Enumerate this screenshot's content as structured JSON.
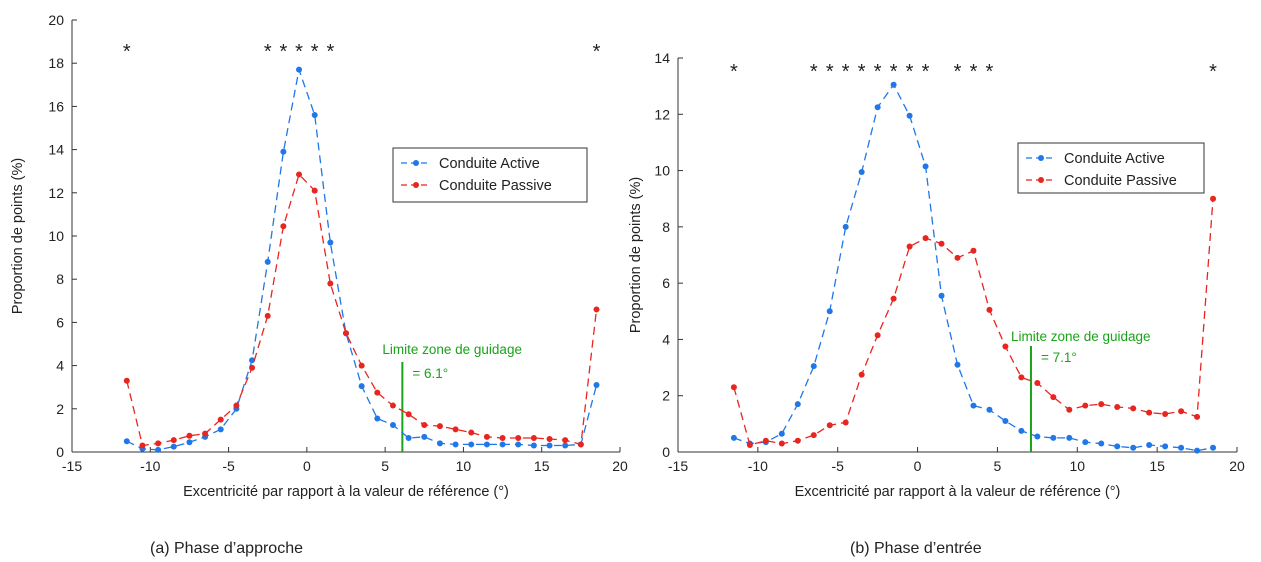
{
  "chart_data": [
    {
      "type": "line",
      "caption": "(a)  Phase d’approche",
      "xlabel": "Excentricité par rapport à la valeur de référence (°)",
      "ylabel": "Proportion de points (%)",
      "xlim": [
        -15,
        20
      ],
      "ylim": [
        0,
        20
      ],
      "xticks": [
        -15,
        -10,
        -5,
        0,
        5,
        10,
        15,
        20
      ],
      "yticks": [
        0,
        2,
        4,
        6,
        8,
        10,
        12,
        14,
        16,
        18,
        20
      ],
      "grid": false,
      "legend": "right",
      "x": [
        -11.5,
        -10.5,
        -9.5,
        -8.5,
        -7.5,
        -6.5,
        -5.5,
        -4.5,
        -3.5,
        -2.5,
        -1.5,
        -0.5,
        0.5,
        1.5,
        2.5,
        3.5,
        4.5,
        5.5,
        6.5,
        7.5,
        8.5,
        9.5,
        10.5,
        11.5,
        12.5,
        13.5,
        14.5,
        15.5,
        16.5,
        17.5,
        18.5
      ],
      "series": [
        {
          "name": "Conduite Active",
          "color": "#1f77e8",
          "values": [
            0.5,
            0.15,
            0.1,
            0.25,
            0.45,
            0.7,
            1.05,
            2.0,
            4.25,
            8.8,
            13.9,
            17.7,
            15.6,
            9.7,
            5.5,
            3.05,
            1.55,
            1.25,
            0.65,
            0.7,
            0.4,
            0.35,
            0.35,
            0.35,
            0.35,
            0.35,
            0.3,
            0.3,
            0.3,
            0.35,
            3.1
          ]
        },
        {
          "name": "Conduite Passive",
          "color": "#e8251f",
          "values": [
            3.3,
            0.3,
            0.4,
            0.55,
            0.75,
            0.85,
            1.5,
            2.15,
            3.9,
            6.3,
            10.45,
            12.85,
            12.1,
            7.8,
            5.5,
            4.0,
            2.75,
            2.15,
            1.75,
            1.25,
            1.2,
            1.05,
            0.9,
            0.7,
            0.65,
            0.65,
            0.65,
            0.6,
            0.55,
            0.35,
            6.6
          ]
        }
      ],
      "significance_x": [
        -11.5,
        -2.5,
        -1.5,
        -0.5,
        0.5,
        1.5,
        18.5
      ],
      "significance_symbol": "*",
      "guidance_limit": {
        "x": 6.1,
        "label_line1": "Limite zone de guidage",
        "label_line2": "= 6.1°",
        "color": "#1aa31a"
      }
    },
    {
      "type": "line",
      "caption": "(b)   Phase d’entrée",
      "xlabel": "Excentricité par rapport à la valeur de référence (°)",
      "ylabel": "Proportion de points (%)",
      "xlim": [
        -15,
        20
      ],
      "ylim": [
        0,
        14
      ],
      "xticks": [
        -15,
        -10,
        -5,
        0,
        5,
        10,
        15,
        20
      ],
      "yticks": [
        0,
        2,
        4,
        6,
        8,
        10,
        12,
        14
      ],
      "grid": false,
      "legend": "right",
      "x": [
        -11.5,
        -10.5,
        -9.5,
        -8.5,
        -7.5,
        -6.5,
        -5.5,
        -4.5,
        -3.5,
        -2.5,
        -1.5,
        -0.5,
        0.5,
        1.5,
        2.5,
        3.5,
        4.5,
        5.5,
        6.5,
        7.5,
        8.5,
        9.5,
        10.5,
        11.5,
        12.5,
        13.5,
        14.5,
        15.5,
        16.5,
        17.5,
        18.5
      ],
      "series": [
        {
          "name": "Conduite Active",
          "color": "#1f77e8",
          "values": [
            0.5,
            0.3,
            0.35,
            0.65,
            1.7,
            3.05,
            5.0,
            8.0,
            9.95,
            12.25,
            13.05,
            11.95,
            10.15,
            5.55,
            3.1,
            1.65,
            1.5,
            1.1,
            0.75,
            0.55,
            0.5,
            0.5,
            0.35,
            0.3,
            0.2,
            0.15,
            0.25,
            0.2,
            0.15,
            0.05,
            0.15
          ]
        },
        {
          "name": "Conduite Passive",
          "color": "#e8251f",
          "values": [
            2.3,
            0.25,
            0.4,
            0.3,
            0.4,
            0.6,
            0.95,
            1.05,
            2.75,
            4.15,
            5.45,
            7.3,
            7.6,
            7.4,
            6.9,
            7.15,
            5.05,
            3.75,
            2.65,
            2.45,
            1.95,
            1.5,
            1.65,
            1.7,
            1.6,
            1.55,
            1.4,
            1.35,
            1.45,
            1.25,
            9.0
          ]
        }
      ],
      "significance_x": [
        -11.5,
        -6.5,
        -5.5,
        -4.5,
        -3.5,
        -2.5,
        -1.5,
        -0.5,
        0.5,
        2.5,
        3.5,
        4.5,
        18.5
      ],
      "significance_symbol": "*",
      "guidance_limit": {
        "x": 7.1,
        "label_line1": "Limite zone de guidage",
        "label_line2": "= 7.1°",
        "color": "#1aa31a"
      }
    }
  ]
}
